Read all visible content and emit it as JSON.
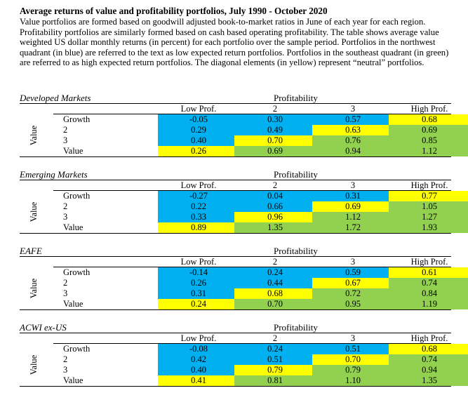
{
  "title": "Average returns of value and profitability portfolios, July 1990 - October 2020",
  "caption": "Value portfolios are formed based on goodwill adjusted book-to-market ratios in June of each year for each region. Profitability portfolios are similarly formed based on cash based operating profitability. The table shows average value weighted US dollar monthly returns (in percent) for each portfolio over the sample period. Portfolios in the northwest quadrant (in blue) are referred to the text as low expected return portfolios. Portfolios in the southeast quadrant (in green) are referred to as high expected return portfolios. The diagonal elements (in yellow) represent “neutral” portfolios.",
  "colors": {
    "blue": "#00b0f0",
    "yellow": "#ffff00",
    "green": "#92d050"
  },
  "column_group_label": "Profitability",
  "row_group_label": "Value",
  "columns": [
    "Low Prof.",
    "2",
    "3",
    "High Prof."
  ],
  "rows": [
    "Growth",
    "2",
    "3",
    "Value"
  ],
  "color_map": [
    [
      "blue",
      "blue",
      "blue",
      "yellow"
    ],
    [
      "blue",
      "blue",
      "yellow",
      "green"
    ],
    [
      "blue",
      "yellow",
      "green",
      "green"
    ],
    [
      "yellow",
      "green",
      "green",
      "green"
    ]
  ],
  "panels": [
    {
      "name": "Developed Markets",
      "values": [
        [
          "-0.05",
          "0.30",
          "0.57",
          "0.68"
        ],
        [
          "0.29",
          "0.49",
          "0.63",
          "0.69"
        ],
        [
          "0.40",
          "0.70",
          "0.76",
          "0.85"
        ],
        [
          "0.26",
          "0.69",
          "0.94",
          "1.12"
        ]
      ]
    },
    {
      "name": "Emerging Markets",
      "values": [
        [
          "-0.27",
          "0.04",
          "0.31",
          "0.77"
        ],
        [
          "0.22",
          "0.66",
          "0.69",
          "1.05"
        ],
        [
          "0.33",
          "0.96",
          "1.12",
          "1.27"
        ],
        [
          "0.89",
          "1.35",
          "1.72",
          "1.93"
        ]
      ]
    },
    {
      "name": "EAFE",
      "values": [
        [
          "-0.14",
          "0.24",
          "0.59",
          "0.61"
        ],
        [
          "0.26",
          "0.44",
          "0.67",
          "0.74"
        ],
        [
          "0.31",
          "0.68",
          "0.72",
          "0.84"
        ],
        [
          "0.24",
          "0.70",
          "0.95",
          "1.19"
        ]
      ]
    },
    {
      "name": "ACWI ex-US",
      "values": [
        [
          "-0.08",
          "0.24",
          "0.51",
          "0.68"
        ],
        [
          "0.42",
          "0.51",
          "0.70",
          "0.74"
        ],
        [
          "0.40",
          "0.79",
          "0.79",
          "0.94"
        ],
        [
          "0.41",
          "0.81",
          "1.10",
          "1.35"
        ]
      ]
    }
  ]
}
